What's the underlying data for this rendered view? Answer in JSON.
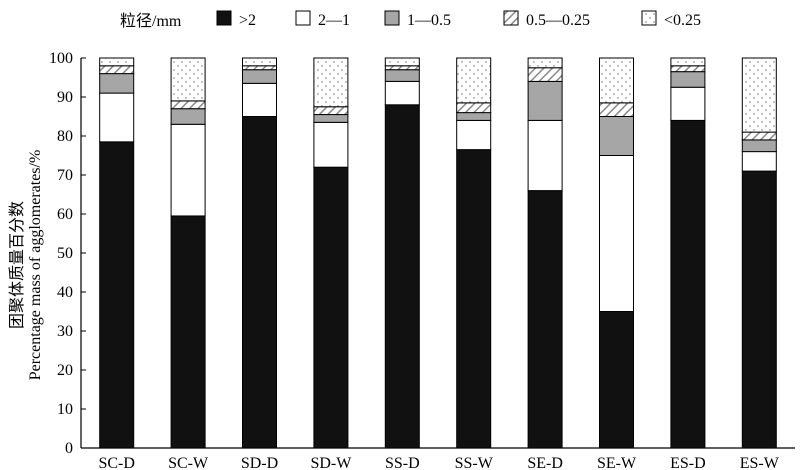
{
  "chart_data": {
    "type": "bar",
    "stacked": true,
    "legend_title": "粒径/mm",
    "legend_position": "top",
    "ylabel_cn": "团聚体质量百分数",
    "ylabel_en": "Percentage mass of agglomerates/%",
    "xlabel": "",
    "ylim": [
      0,
      100
    ],
    "yticks": [
      0,
      10,
      20,
      30,
      40,
      50,
      60,
      70,
      80,
      90,
      100
    ],
    "grid": false,
    "categories": [
      "SC-D",
      "SC-W",
      "SD-D",
      "SD-W",
      "SS-D",
      "SS-W",
      "SE-D",
      "SE-W",
      "ES-D",
      "ES-W"
    ],
    "series": [
      {
        "name": ">2",
        "pattern": "solid-black",
        "values": [
          78.5,
          59.5,
          85.0,
          72.0,
          88.0,
          76.5,
          66.0,
          35.0,
          84.0,
          71.0
        ]
      },
      {
        "name": "2—1",
        "pattern": "white",
        "values": [
          12.5,
          23.5,
          8.5,
          11.5,
          6.0,
          7.5,
          18.0,
          40.0,
          8.5,
          5.0
        ]
      },
      {
        "name": "1—0.5",
        "pattern": "gray",
        "values": [
          5.0,
          4.0,
          3.5,
          2.0,
          3.0,
          2.0,
          10.0,
          10.0,
          4.0,
          3.0
        ]
      },
      {
        "name": "0.5—0.25",
        "pattern": "hatched",
        "values": [
          2.0,
          2.0,
          1.0,
          2.0,
          1.0,
          2.5,
          3.5,
          3.5,
          1.5,
          2.0
        ]
      },
      {
        "name": "<0.25",
        "pattern": "dotted",
        "values": [
          2.0,
          11.0,
          2.0,
          12.5,
          2.0,
          11.5,
          2.5,
          11.5,
          2.0,
          19.0
        ]
      }
    ]
  }
}
